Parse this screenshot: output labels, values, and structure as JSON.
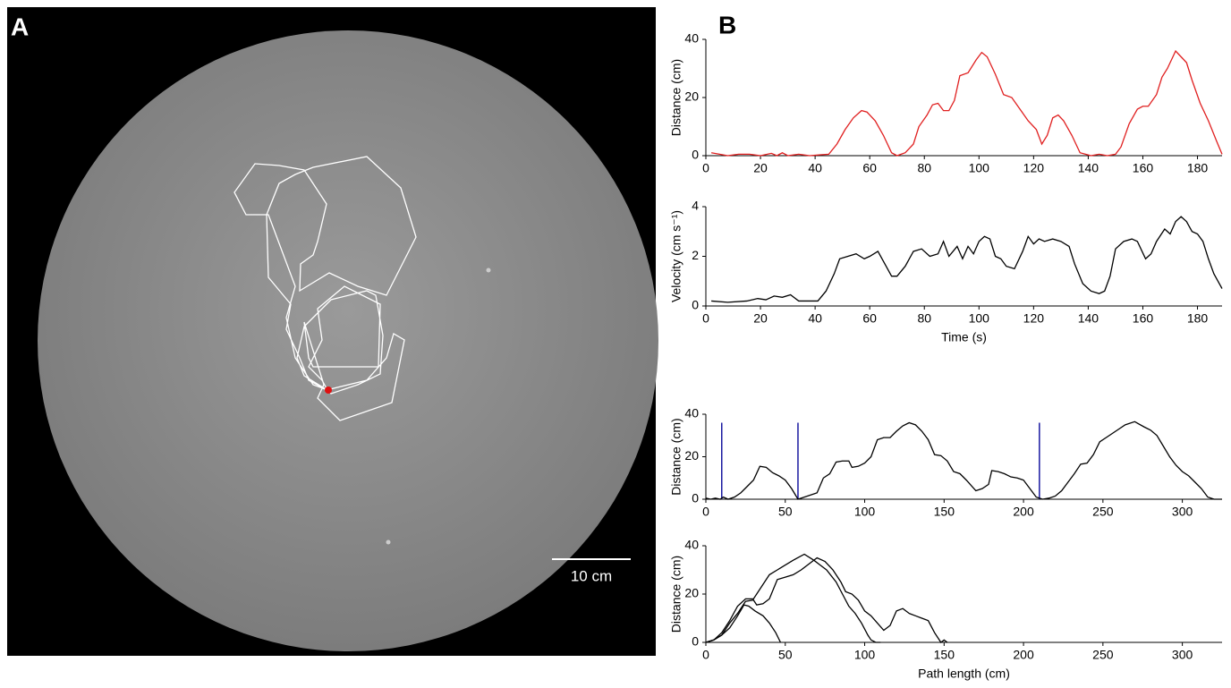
{
  "panel_a": {
    "label": "A",
    "scale_bar": "10 cm"
  },
  "panel_b_label": "B",
  "chart_data": [
    {
      "type": "line",
      "ylabel": "Distance (cm)",
      "xlim": [
        0,
        189
      ],
      "xticks": [
        0,
        20,
        40,
        60,
        80,
        100,
        120,
        140,
        160,
        180
      ],
      "ylim": [
        0,
        40
      ],
      "yticks": [
        0,
        20,
        40
      ],
      "x": [
        2,
        5,
        8,
        12,
        16,
        20,
        24,
        26,
        28,
        30,
        34,
        38,
        42,
        45,
        48,
        51,
        54,
        57,
        59,
        62,
        65,
        68,
        70,
        73,
        76,
        78,
        81,
        83,
        85,
        87,
        89,
        91,
        93,
        96,
        99,
        101,
        103,
        106,
        109,
        112,
        115,
        118,
        121,
        123,
        125,
        127,
        129,
        131,
        134,
        137,
        139,
        141,
        144,
        147,
        150,
        152,
        155,
        158,
        160,
        162,
        165,
        167,
        169,
        172,
        174,
        176,
        178,
        181,
        184,
        187,
        189
      ],
      "series": [
        {
          "color": "#e02020",
          "values": [
            1,
            0.5,
            0,
            0.5,
            0.5,
            0,
            0.8,
            0,
            1,
            0,
            0.5,
            0,
            0.3,
            0.5,
            4,
            9,
            13,
            15.5,
            15,
            12,
            7,
            1,
            0,
            1,
            4,
            10,
            14,
            17.5,
            18,
            15.5,
            15.5,
            19,
            27.5,
            28.5,
            33,
            35.5,
            34,
            28,
            21,
            20,
            16,
            12,
            9,
            4,
            7,
            13,
            14,
            12,
            7,
            1,
            0.5,
            0,
            0.5,
            0,
            0.5,
            3,
            11,
            16,
            17,
            17,
            21,
            27,
            30,
            36,
            34,
            32,
            26,
            18,
            12,
            5,
            0.5
          ]
        }
      ]
    },
    {
      "type": "line",
      "ylabel": "Velocity (cm s⁻¹)",
      "xlabel": "Time (s)",
      "xlim": [
        0,
        189
      ],
      "xticks": [
        0,
        20,
        40,
        60,
        80,
        100,
        120,
        140,
        160,
        180
      ],
      "ylim": [
        0,
        4
      ],
      "yticks": [
        0,
        2,
        4
      ],
      "x": [
        2,
        8,
        15,
        19,
        22,
        25,
        28,
        31,
        34,
        38,
        41,
        44,
        47,
        49,
        52,
        55,
        58,
        60,
        63,
        66,
        68,
        70,
        73,
        76,
        79,
        82,
        85,
        87,
        89,
        92,
        94,
        96,
        98,
        100,
        102,
        104,
        106,
        108,
        110,
        113,
        116,
        118,
        120,
        122,
        124,
        127,
        130,
        133,
        135,
        138,
        141,
        144,
        146,
        148,
        150,
        153,
        156,
        158,
        161,
        163,
        165,
        168,
        170,
        172,
        174,
        176,
        178,
        180,
        182,
        184,
        186,
        189
      ],
      "series": [
        {
          "color": "#000000",
          "values": [
            0.2,
            0.15,
            0.2,
            0.3,
            0.25,
            0.4,
            0.35,
            0.45,
            0.2,
            0.2,
            0.2,
            0.6,
            1.3,
            1.9,
            2,
            2.1,
            1.9,
            2,
            2.2,
            1.6,
            1.2,
            1.2,
            1.6,
            2.2,
            2.3,
            2,
            2.1,
            2.6,
            2,
            2.4,
            1.9,
            2.4,
            2.1,
            2.6,
            2.8,
            2.7,
            2,
            1.9,
            1.6,
            1.5,
            2.2,
            2.8,
            2.5,
            2.7,
            2.6,
            2.7,
            2.6,
            2.4,
            1.7,
            0.9,
            0.6,
            0.5,
            0.6,
            1.2,
            2.3,
            2.6,
            2.7,
            2.6,
            1.9,
            2.1,
            2.6,
            3.1,
            2.9,
            3.4,
            3.6,
            3.4,
            3,
            2.9,
            2.6,
            1.9,
            1.3,
            0.7
          ]
        }
      ]
    },
    {
      "type": "line",
      "ylabel": "Distance (cm)",
      "xlim": [
        0,
        325
      ],
      "xticks": [
        0,
        50,
        100,
        150,
        200,
        250,
        300
      ],
      "ylim": [
        0,
        40
      ],
      "yticks": [
        0,
        20,
        40
      ],
      "vlines": {
        "x": [
          10,
          58,
          210
        ],
        "color": "#1a1aa0"
      },
      "x": [
        0,
        3,
        6,
        9,
        11,
        14,
        18,
        22,
        26,
        30,
        34,
        38,
        42,
        46,
        50,
        54,
        58,
        62,
        66,
        70,
        74,
        78,
        82,
        86,
        90,
        92,
        96,
        100,
        104,
        108,
        112,
        116,
        120,
        124,
        128,
        132,
        136,
        140,
        144,
        148,
        152,
        156,
        160,
        164,
        170,
        174,
        178,
        180,
        184,
        188,
        192,
        196,
        200,
        204,
        208,
        212,
        216,
        220,
        224,
        228,
        232,
        236,
        240,
        244,
        248,
        252,
        256,
        260,
        264,
        270,
        276,
        280,
        284,
        288,
        292,
        296,
        300,
        304,
        308,
        312,
        316,
        320,
        322,
        325
      ],
      "series": [
        {
          "color": "#000000",
          "values": [
            0.5,
            0,
            0.5,
            0,
            1,
            0,
            1,
            3,
            6,
            9,
            15.5,
            15,
            12.5,
            11,
            9,
            5,
            0,
            1,
            2,
            3,
            10,
            12,
            17.5,
            18,
            18,
            15,
            15.5,
            17,
            20,
            28,
            29,
            29,
            32,
            34.5,
            36,
            35,
            32,
            28,
            21,
            20.5,
            18,
            13,
            12,
            9,
            4,
            5,
            7,
            13.5,
            13,
            12,
            10.5,
            10,
            9,
            5,
            1,
            0,
            0.5,
            1.5,
            4,
            8,
            12,
            16.5,
            17,
            21,
            27,
            29,
            31,
            33,
            35,
            36.5,
            34,
            32.5,
            30,
            25,
            20,
            16,
            13,
            11,
            8,
            5,
            1,
            0,
            0,
            0
          ]
        }
      ]
    },
    {
      "type": "line",
      "ylabel": "Distance (cm)",
      "xlabel": "Path length (cm)",
      "xlim": [
        0,
        325
      ],
      "xticks": [
        0,
        50,
        100,
        150,
        200,
        250,
        300
      ],
      "ylim": [
        0,
        40
      ],
      "yticks": [
        0,
        20,
        40
      ],
      "series": [
        {
          "color": "#000000",
          "x": [
            0,
            5,
            10,
            15,
            20,
            24,
            27,
            31,
            36,
            40,
            44,
            47
          ],
          "values": [
            0,
            1,
            3,
            6,
            11,
            15.5,
            15,
            13,
            11,
            8,
            4,
            0
          ]
        },
        {
          "color": "#000000",
          "x": [
            0,
            5,
            10,
            15,
            20,
            25,
            30,
            32,
            36,
            40,
            45,
            50,
            55,
            60,
            66,
            70,
            75,
            80,
            85,
            88,
            92,
            96,
            100,
            104,
            108,
            112,
            116,
            120,
            124,
            128,
            132,
            136,
            140,
            144,
            148,
            150,
            152
          ],
          "values": [
            0,
            1,
            3,
            8,
            12,
            17,
            17.5,
            15.5,
            16,
            18,
            26,
            27,
            28,
            30,
            33,
            35,
            33.5,
            30,
            25,
            21,
            20,
            17.5,
            13,
            11,
            8,
            5,
            7,
            13,
            14,
            12,
            11,
            10,
            9,
            4,
            0,
            1,
            0
          ]
        },
        {
          "color": "#000000",
          "x": [
            0,
            5,
            10,
            15,
            20,
            25,
            30,
            35,
            40,
            45,
            50,
            55,
            62,
            68,
            72,
            76,
            82,
            86,
            90,
            94,
            98,
            102,
            104,
            107,
            110
          ],
          "values": [
            0,
            1,
            4,
            9,
            15,
            18,
            18,
            23,
            28,
            30,
            32,
            34,
            36.5,
            34,
            32,
            30,
            25,
            20,
            15,
            12,
            8,
            3,
            1,
            0,
            0
          ]
        }
      ]
    }
  ]
}
